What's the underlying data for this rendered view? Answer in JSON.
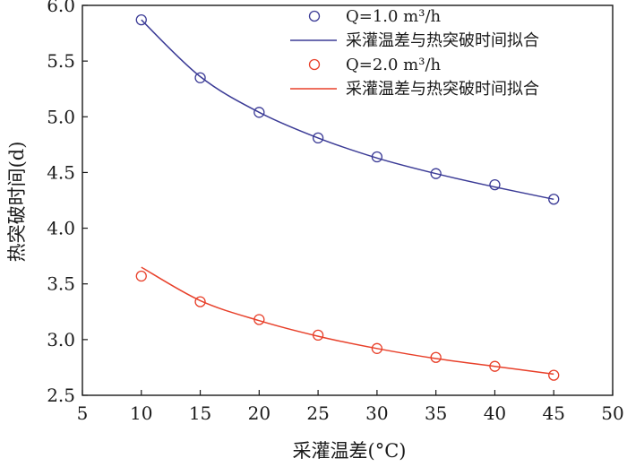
{
  "chart_data": {
    "type": "scatter",
    "xlabel": "采灌温差(°C)",
    "ylabel": "热突破时间(d)",
    "xlim": [
      5,
      50
    ],
    "ylim": [
      2.5,
      6.0
    ],
    "xticks": [
      5,
      10,
      15,
      20,
      25,
      30,
      35,
      40,
      45,
      50
    ],
    "yticks": [
      2.5,
      3.0,
      3.5,
      4.0,
      4.5,
      5.0,
      5.5,
      6.0
    ],
    "xtick_labels": [
      "5",
      "10",
      "15",
      "20",
      "25",
      "30",
      "35",
      "40",
      "45",
      "50"
    ],
    "ytick_labels": [
      "2.5",
      "3.0",
      "3.5",
      "4.0",
      "4.5",
      "5.0",
      "5.5",
      "6.0"
    ],
    "grid": false,
    "legend_position": "top-right",
    "series": [
      {
        "name": "Q=1.0 m³/h",
        "kind": "points",
        "color": "#3b3b96",
        "x": [
          10,
          15,
          20,
          25,
          30,
          35,
          40,
          45
        ],
        "y": [
          5.87,
          5.35,
          5.04,
          4.81,
          4.64,
          4.49,
          4.39,
          4.26
        ]
      },
      {
        "name": "采灌温差与热突破时间拟合",
        "kind": "fit",
        "color": "#3b3b96",
        "x": [
          10,
          15,
          20,
          25,
          30,
          35,
          40,
          45
        ],
        "y": [
          5.87,
          5.36,
          5.04,
          4.81,
          4.63,
          4.49,
          4.37,
          4.26
        ]
      },
      {
        "name": "Q=2.0 m³/h",
        "kind": "points",
        "color": "#e8402a",
        "x": [
          10,
          15,
          20,
          25,
          30,
          35,
          40,
          45
        ],
        "y": [
          3.57,
          3.34,
          3.18,
          3.04,
          2.92,
          2.84,
          2.76,
          2.68
        ]
      },
      {
        "name": "采灌温差与热突破时间拟合",
        "kind": "fit",
        "color": "#e8402a",
        "x": [
          10,
          15,
          20,
          25,
          30,
          35,
          40,
          45
        ],
        "y": [
          3.65,
          3.35,
          3.17,
          3.03,
          2.92,
          2.83,
          2.76,
          2.69
        ]
      }
    ]
  }
}
